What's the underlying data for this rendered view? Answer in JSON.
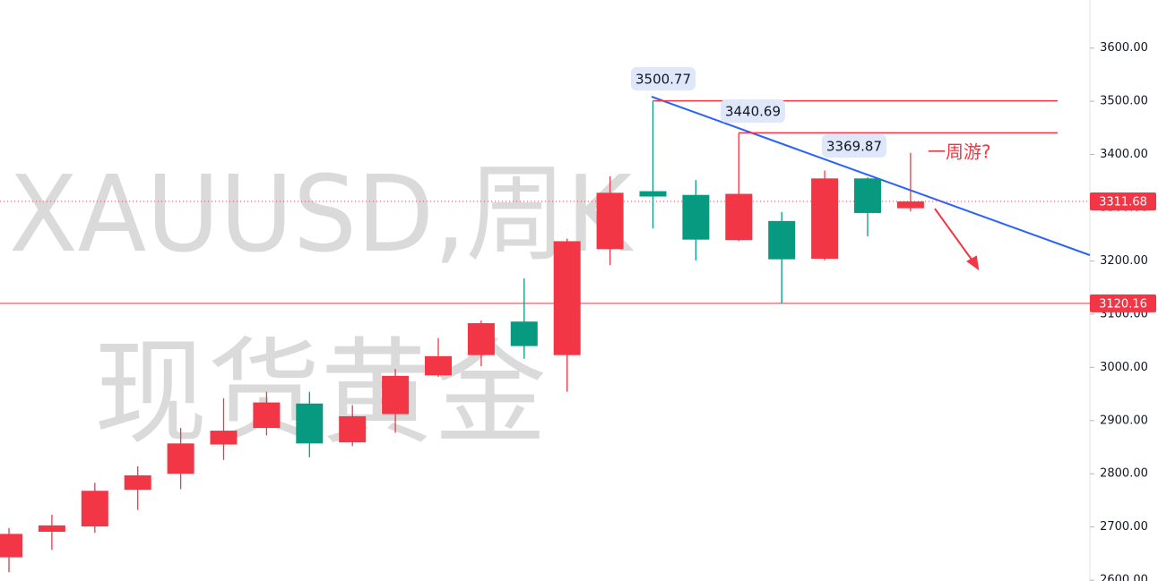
{
  "chart_data": {
    "type": "candlestick",
    "watermark": [
      "XAUUSD,周K",
      "现货黄金"
    ],
    "annotation": "一周游?",
    "open": [
      2643,
      2691,
      2701,
      2770,
      2800,
      2855,
      2886,
      2932,
      2859,
      2912,
      2985,
      3023,
      3086,
      3023,
      3222,
      3331,
      3324,
      3239,
      3275,
      3204,
      3355,
      3299
    ],
    "close": [
      2687,
      2703,
      2768,
      2797,
      2857,
      2881,
      2934,
      2857,
      2908,
      2984,
      3021,
      3083,
      3040,
      3237,
      3328,
      3321,
      3240,
      3326,
      3203,
      3355,
      3290,
      3311.68
    ],
    "high": [
      2698,
      2723,
      2783,
      2814,
      2886,
      2942,
      2954,
      2954,
      2929,
      2997,
      3055,
      3088,
      3167,
      3242,
      3359,
      3500.77,
      3352,
      3440.69,
      3292,
      3369.87,
      3357,
      3403
    ],
    "low": [
      2615,
      2657,
      2689,
      2732,
      2771,
      2826,
      2872,
      2831,
      2852,
      2877,
      2982,
      3002,
      3016,
      2954,
      3192,
      3261,
      3201,
      3237,
      3120.16,
      3201,
      3246,
      3293
    ],
    "up_color": "#f23645",
    "down_color": "#089981",
    "ylim": [
      2580,
      3660
    ],
    "yticks": [
      {
        "value": 2600,
        "label": "2600.00"
      },
      {
        "value": 2700,
        "label": "2700.00"
      },
      {
        "value": 2800,
        "label": "2800.00"
      },
      {
        "value": 2900,
        "label": "2900.00"
      },
      {
        "value": 3000,
        "label": "3000.00"
      },
      {
        "value": 3100,
        "label": "3100.00"
      },
      {
        "value": 3200,
        "label": "3200.00"
      },
      {
        "value": 3300,
        "label": "3300.00"
      },
      {
        "value": 3400,
        "label": "3400.00"
      },
      {
        "value": 3500,
        "label": "3500.00"
      },
      {
        "value": 3600,
        "label": "3600.00"
      }
    ]
  }
}
